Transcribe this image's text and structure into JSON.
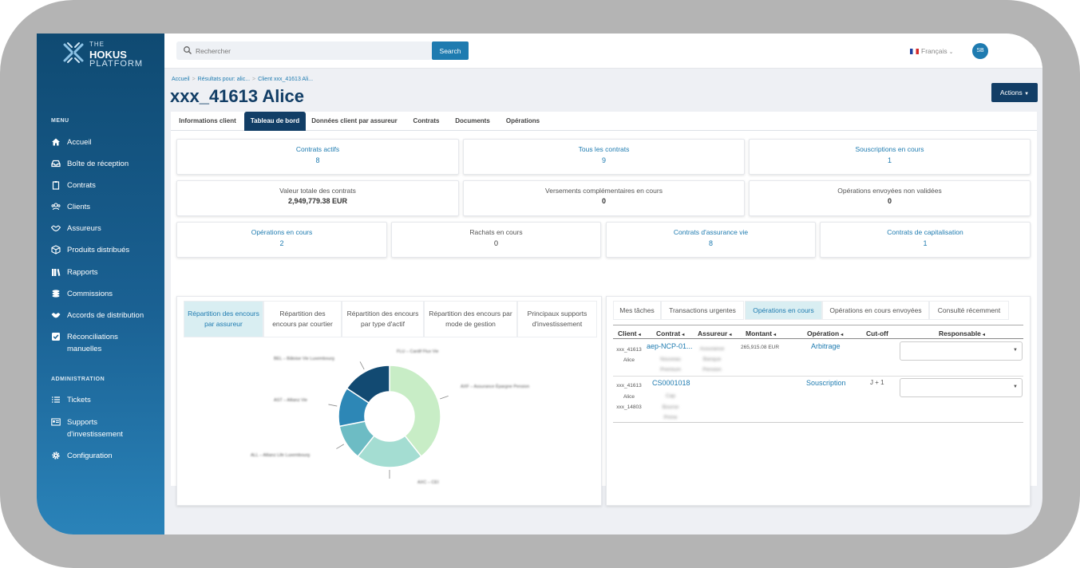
{
  "sidebar": {
    "brand": {
      "line1": "THE",
      "line2": "HOKUS",
      "line3": "PLATFORM"
    },
    "menu_title": "MENU",
    "menu": [
      {
        "label": "Accueil",
        "icon": "home-icon"
      },
      {
        "label": "Boîte de réception",
        "icon": "inbox-icon"
      },
      {
        "label": "Contrats",
        "icon": "clipboard-icon"
      },
      {
        "label": "Clients",
        "icon": "users-icon"
      },
      {
        "label": "Assureurs",
        "icon": "handshake-icon"
      },
      {
        "label": "Produits distribués",
        "icon": "box-icon"
      },
      {
        "label": "Rapports",
        "icon": "books-icon"
      },
      {
        "label": "Commissions",
        "icon": "coins-icon"
      },
      {
        "label": "Accords de distribution",
        "icon": "handshake-icon"
      },
      {
        "label": "Réconciliations manuelles",
        "icon": "check-square-icon"
      }
    ],
    "admin_title": "ADMINISTRATION",
    "admin": [
      {
        "label": "Tickets",
        "icon": "list-icon"
      },
      {
        "label": "Supports d'investissement",
        "icon": "id-card-icon"
      },
      {
        "label": "Configuration",
        "icon": "gear-icon"
      }
    ]
  },
  "topbar": {
    "search_placeholder": "Rechercher",
    "search_button": "Search",
    "language": "Français",
    "avatar_initials": "SB"
  },
  "breadcrumb": [
    "Accueil",
    "Résultats pour: alic...",
    "Client xxx_41613 Ali..."
  ],
  "page_title": "xxx_41613 Alice",
  "actions_label": "Actions",
  "tabs": [
    "Informations client",
    "Tableau de bord",
    "Données client par assureur",
    "Contrats",
    "Documents",
    "Opérations"
  ],
  "active_tab": "Tableau de bord",
  "stats_row1": [
    {
      "label": "Contrats actifs",
      "value": "8"
    },
    {
      "label": "Tous les contrats",
      "value": "9"
    },
    {
      "label": "Souscriptions en cours",
      "value": "1"
    }
  ],
  "stats_row2": [
    {
      "label": "Valeur totale des contrats",
      "value": "2,949,779.38 EUR"
    },
    {
      "label": "Versements complémentaires en cours",
      "value": "0"
    },
    {
      "label": "Opérations envoyées non validées",
      "value": "0"
    }
  ],
  "stats_row3": [
    {
      "label": "Opérations en cours",
      "value": "2"
    },
    {
      "label": "Rachats en cours",
      "value": "0"
    },
    {
      "label": "Contrats d'assurance vie",
      "value": "8"
    },
    {
      "label": "Contrats de capitalisation",
      "value": "1"
    }
  ],
  "chart_panel": {
    "tabs": [
      "Répartition des encours par assureur",
      "Répartition des encours par courtier",
      "Répartition des encours par type d'actif",
      "Répartition des encours par mode de gestion",
      "Principaux supports d'investissement"
    ],
    "active_tab": "Répartition des encours par assureur"
  },
  "chart_data": {
    "type": "pie",
    "donut": true,
    "title": "",
    "labels_blurred": true,
    "values": [
      35,
      19,
      10,
      11,
      14
    ],
    "slice_colors": [
      "#c8edc6",
      "#a4ddd2",
      "#6dbcc4",
      "#2d87b6",
      "#124a72"
    ]
  },
  "ops_panel": {
    "tabs": [
      "Mes tâches",
      "Transactions urgentes",
      "Opérations en cours",
      "Opérations en cours envoyées",
      "Consulté récemment"
    ],
    "active_tab": "Opérations en cours",
    "columns": [
      "Client",
      "Contrat",
      "Assureur",
      "Montant",
      "Opération",
      "Cut-off",
      "Responsable"
    ],
    "rows": [
      {
        "client": [
          "xxx_41613",
          "Alice"
        ],
        "contract": "aep-NCP-01...",
        "contract_sub": [
          "Nouveau",
          "Premium"
        ],
        "insurer": [
          "Assurance",
          "Banque",
          "Pension"
        ],
        "amount": "265,915.08 EUR",
        "operation": "Arbitrage",
        "cutoff": "",
        "responsible": ""
      },
      {
        "client": [
          "xxx_41613",
          "Alice",
          "xxx_14803"
        ],
        "contract": "CS0001018",
        "contract_sub": [
          "Cap",
          "Bourse",
          "Prime"
        ],
        "insurer": [],
        "amount": "",
        "operation": "Souscription",
        "cutoff": "J + 1",
        "responsible": ""
      }
    ]
  }
}
